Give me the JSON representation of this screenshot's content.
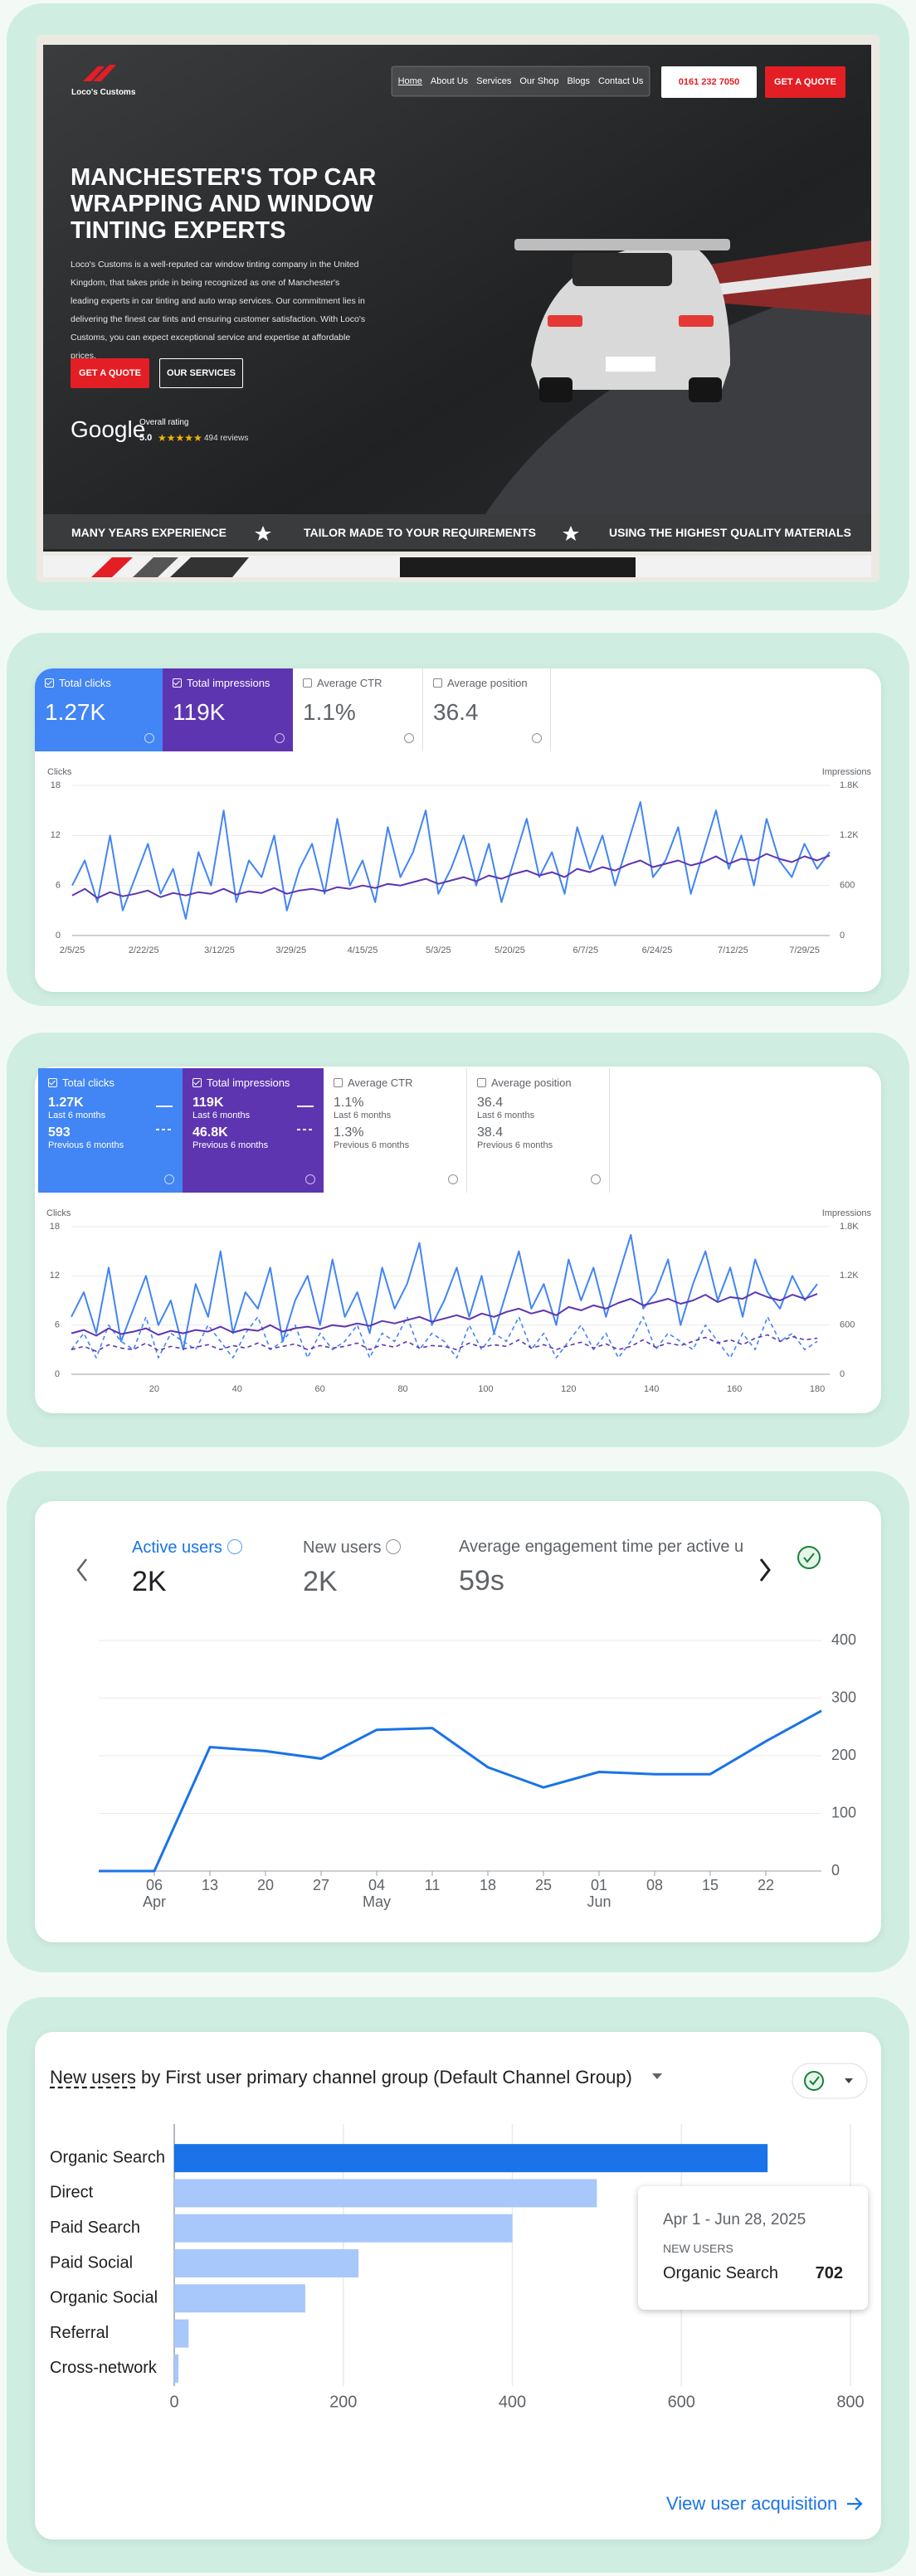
{
  "website": {
    "logo": "Loco's Customs",
    "nav": [
      "Home",
      "About Us",
      "Services",
      "Our Shop",
      "Blogs",
      "Contact Us"
    ],
    "phone": "0161 232 7050",
    "quote_button": "GET A QUOTE",
    "headline": "MANCHESTER'S TOP CAR WRAPPING AND WINDOW TINTING EXPERTS",
    "paragraph": "Loco's Customs is a well-reputed car window tinting company in the United Kingdom, that takes pride in being recognized as one of Manchester's leading experts in car tinting and auto wrap services. Our commitment lies in delivering the finest car tints and ensuring customer satisfaction. With Loco's Customs, you can expect exceptional service and expertise at affordable prices.",
    "buttons": [
      "GET A QUOTE",
      "OUR SERVICES"
    ],
    "google": {
      "brand": "Google",
      "rating_label": "Overall rating",
      "rating": "5.0",
      "stars": "★★★★★",
      "reviews": "494 reviews"
    },
    "banner": [
      "MANY YEARS EXPERIENCE",
      "TAILOR MADE TO YOUR REQUIREMENTS",
      "USING THE HIGHEST QUALITY MATERIALS"
    ]
  },
  "chart_data": [
    {
      "type": "line",
      "series": [
        {
          "name": "Total clicks",
          "total": "1.27K",
          "color": "#4285f4",
          "values": [
            6,
            9,
            4,
            12,
            3,
            7,
            11,
            5,
            8,
            2,
            10,
            6,
            15,
            4,
            9,
            7,
            12,
            3,
            8,
            11,
            5,
            14,
            6,
            9,
            4,
            13,
            7,
            10,
            15,
            5,
            8,
            12,
            6,
            11,
            4,
            9,
            14,
            7,
            10,
            5,
            13,
            8,
            12,
            6,
            11,
            16,
            7,
            9,
            13,
            5,
            10,
            15,
            8,
            12,
            6,
            14,
            9,
            7,
            11,
            8,
            10
          ]
        },
        {
          "name": "Total impressions",
          "total": "119K",
          "color": "#5e35b1",
          "axis": "y2",
          "values": [
            480,
            560,
            450,
            520,
            470,
            500,
            540,
            460,
            510,
            480,
            520,
            500,
            560,
            490,
            530,
            510,
            570,
            500,
            540,
            560,
            530,
            580,
            560,
            600,
            570,
            620,
            600,
            640,
            680,
            620,
            660,
            700,
            650,
            720,
            680,
            740,
            780,
            720,
            760,
            700,
            800,
            760,
            820,
            780,
            850,
            900,
            820,
            860,
            900,
            840,
            880,
            950,
            860,
            920,
            900,
            980,
            920,
            880,
            950,
            900,
            960
          ]
        }
      ],
      "other_metrics": [
        {
          "name": "Average CTR",
          "total": "1.1%"
        },
        {
          "name": "Average position",
          "total": "36.4"
        }
      ],
      "ylabel": "Clicks",
      "y2label": "Impressions",
      "x": [
        0,
        3,
        6,
        9,
        12,
        15,
        18,
        21,
        24,
        27,
        30,
        33,
        36,
        39,
        42,
        45,
        48,
        51,
        54,
        57,
        60,
        63,
        66,
        69,
        72,
        75,
        78,
        81,
        84,
        87,
        90,
        93,
        96,
        99,
        102,
        105,
        108,
        111,
        114,
        117,
        120,
        123,
        126,
        129,
        132,
        135,
        138,
        141,
        144,
        147,
        150,
        153,
        156,
        159,
        162,
        165,
        168,
        171,
        174,
        177,
        180
      ],
      "xlim": [
        0,
        180
      ],
      "xticks": [
        {
          "value": 0,
          "label": "2/5/25"
        },
        {
          "value": 17,
          "label": "2/22/25"
        },
        {
          "value": 35,
          "label": "3/12/25"
        },
        {
          "value": 52,
          "label": "3/29/25"
        },
        {
          "value": 69,
          "label": "4/15/25"
        },
        {
          "value": 87,
          "label": "5/3/25"
        },
        {
          "value": 104,
          "label": "5/20/25"
        },
        {
          "value": 122,
          "label": "6/7/25"
        },
        {
          "value": 139,
          "label": "6/24/25"
        },
        {
          "value": 157,
          "label": "7/12/25"
        },
        {
          "value": 174,
          "label": "7/29/25"
        }
      ],
      "ylim": [
        0,
        18
      ],
      "yticks": [
        0,
        6,
        12,
        18
      ],
      "y2lim": [
        0,
        1800
      ],
      "y2ticks": [
        0,
        600,
        {
          "value": 1200,
          "label": "1.2K"
        },
        {
          "value": 1800,
          "label": "1.8K"
        }
      ]
    },
    {
      "type": "line",
      "series": [
        {
          "name": "Total clicks",
          "color": "#4285f4",
          "totals": [
            {
              "value": "1.27K",
              "period": "Last 6 months"
            },
            {
              "value": "593",
              "period": "Previous 6 months"
            }
          ],
          "values": [
            7,
            10,
            5,
            13,
            4,
            8,
            12,
            6,
            9,
            3,
            11,
            7,
            15,
            5,
            10,
            8,
            13,
            4,
            9,
            12,
            6,
            14,
            7,
            10,
            5,
            13,
            8,
            11,
            16,
            6,
            9,
            13,
            7,
            12,
            5,
            10,
            15,
            8,
            11,
            6,
            14,
            9,
            13,
            7,
            12,
            17,
            8,
            10,
            14,
            6,
            11,
            15,
            9,
            13,
            7,
            14,
            10,
            8,
            12,
            9,
            11
          ],
          "previous_values": [
            3,
            5,
            2,
            6,
            4,
            3,
            7,
            2,
            5,
            4,
            3,
            6,
            4,
            2,
            5,
            7,
            3,
            4,
            6,
            2,
            5,
            3,
            4,
            6,
            2,
            5,
            4,
            7,
            3,
            5,
            4,
            2,
            6,
            3,
            5,
            4,
            7,
            3,
            5,
            2,
            4,
            6,
            3,
            5,
            2,
            4,
            7,
            3,
            5,
            4,
            3,
            6,
            4,
            2,
            5,
            3,
            7,
            4,
            5,
            3,
            4
          ]
        },
        {
          "name": "Total impressions",
          "color": "#5e35b1",
          "axis": "y2",
          "totals": [
            {
              "value": "119K",
              "period": "Last 6 months"
            },
            {
              "value": "46.8K",
              "period": "Previous 6 months"
            }
          ],
          "values": [
            500,
            540,
            470,
            560,
            490,
            520,
            560,
            480,
            530,
            500,
            540,
            520,
            580,
            510,
            550,
            530,
            600,
            520,
            560,
            580,
            550,
            600,
            580,
            620,
            590,
            650,
            620,
            660,
            700,
            640,
            680,
            720,
            670,
            740,
            700,
            760,
            800,
            740,
            780,
            720,
            820,
            780,
            840,
            800,
            870,
            920,
            840,
            880,
            920,
            860,
            900,
            970,
            880,
            940,
            920,
            1000,
            940,
            900,
            970,
            920,
            980
          ],
          "previous_values": [
            300,
            340,
            280,
            360,
            320,
            300,
            380,
            290,
            340,
            310,
            330,
            360,
            300,
            350,
            320,
            380,
            310,
            340,
            370,
            300,
            350,
            320,
            340,
            380,
            300,
            360,
            330,
            400,
            320,
            350,
            340,
            300,
            380,
            330,
            360,
            340,
            420,
            320,
            360,
            300,
            350,
            390,
            320,
            370,
            300,
            340,
            420,
            330,
            380,
            350,
            400,
            450,
            380,
            420,
            360,
            440,
            480,
            400,
            460,
            420,
            440
          ]
        }
      ],
      "other_metrics": [
        {
          "name": "Average CTR",
          "totals": [
            {
              "value": "1.1%",
              "period": "Last 6 months"
            },
            {
              "value": "1.3%",
              "period": "Previous 6 months"
            }
          ]
        },
        {
          "name": "Average position",
          "totals": [
            {
              "value": "36.4",
              "period": "Last 6 months"
            },
            {
              "value": "38.4",
              "period": "Previous 6 months"
            }
          ]
        }
      ],
      "ylabel": "Clicks",
      "y2label": "Impressions",
      "x": [
        0,
        3,
        6,
        9,
        12,
        15,
        18,
        21,
        24,
        27,
        30,
        33,
        36,
        39,
        42,
        45,
        48,
        51,
        54,
        57,
        60,
        63,
        66,
        69,
        72,
        75,
        78,
        81,
        84,
        87,
        90,
        93,
        96,
        99,
        102,
        105,
        108,
        111,
        114,
        117,
        120,
        123,
        126,
        129,
        132,
        135,
        138,
        141,
        144,
        147,
        150,
        153,
        156,
        159,
        162,
        165,
        168,
        171,
        174,
        177,
        180
      ],
      "xlim": [
        0,
        183
      ],
      "xticks": [
        20,
        40,
        60,
        80,
        100,
        120,
        140,
        160,
        180
      ],
      "ylim": [
        0,
        18
      ],
      "yticks": [
        0,
        6,
        12,
        18
      ],
      "y2lim": [
        0,
        1800
      ],
      "y2ticks": [
        0,
        600,
        {
          "value": 1200,
          "label": "1.2K"
        },
        {
          "value": 1800,
          "label": "1.8K"
        }
      ]
    },
    {
      "type": "line",
      "tabs": [
        {
          "name": "Active users",
          "value": "2K"
        },
        {
          "name": "New users",
          "value": "2K"
        },
        {
          "name": "Average engagement time per active u",
          "value": "59s"
        }
      ],
      "color": "#1a73e8",
      "categories": [
        null,
        "06",
        "13",
        "20",
        "27",
        "04",
        "11",
        "18",
        "25",
        "01",
        "08",
        "15",
        "22",
        null
      ],
      "months": [
        null,
        "Apr",
        null,
        null,
        null,
        "May",
        null,
        null,
        null,
        "Jun",
        null,
        null,
        null,
        null
      ],
      "values": [
        0,
        0,
        215,
        208,
        195,
        245,
        248,
        180,
        145,
        172,
        168,
        168,
        225,
        278
      ],
      "ylim": [
        0,
        400
      ],
      "yticks": [
        0,
        100,
        200,
        300,
        400
      ],
      "grid": true
    },
    {
      "type": "bar",
      "orientation": "horizontal",
      "title_metric": "New users",
      "title_rest": "by First user primary channel group (Default Channel Group)",
      "categories": [
        "Organic Search",
        "Direct",
        "Paid Search",
        "Paid Social",
        "Organic Social",
        "Referral",
        "Cross-network"
      ],
      "values": [
        702,
        500,
        400,
        218,
        155,
        17,
        5
      ],
      "colors": [
        "#1a73e8",
        "#a8c7fa",
        "#a8c7fa",
        "#a8c7fa",
        "#a8c7fa",
        "#a8c7fa",
        "#a8c7fa"
      ],
      "xlim": [
        0,
        800
      ],
      "xticks": [
        0,
        200,
        400,
        600,
        800
      ],
      "grid": true,
      "tooltip": {
        "date": "Apr 1 - Jun 28, 2025"
      },
      "link": "View user acquisition"
    }
  ]
}
